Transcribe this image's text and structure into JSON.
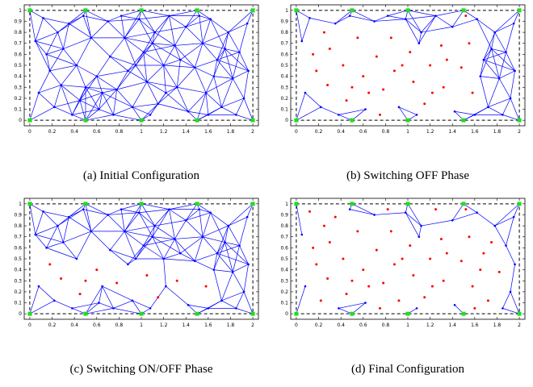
{
  "chart_data": [
    {
      "type": "scatter",
      "caption": "(a) Initial Configuration",
      "xlim": [
        -0.05,
        2.05
      ],
      "ylim": [
        -0.05,
        1.05
      ],
      "xticks": [
        0,
        0.2,
        0.4,
        0.6,
        0.8,
        1,
        1.2,
        1.4,
        1.6,
        1.8,
        2
      ],
      "yticks": [
        0,
        0.1,
        0.2,
        0.3,
        0.4,
        0.5,
        0.6,
        0.7,
        0.8,
        0.9,
        1
      ],
      "link_radius": 0.3,
      "series": [
        {
          "color": "#0000ff",
          "links": true,
          "marker": "dot",
          "x": [
            0.05,
            0.12,
            0.18,
            0.08,
            0.22,
            0.3,
            0.35,
            0.28,
            0.42,
            0.45,
            0.55,
            0.6,
            0.62,
            0.7,
            0.72,
            0.78,
            0.85,
            0.88,
            0.92,
            0.98,
            1.02,
            1.05,
            1.12,
            1.15,
            1.2,
            1.25,
            1.3,
            1.32,
            1.4,
            1.42,
            1.48,
            1.55,
            1.58,
            1.62,
            1.68,
            1.72,
            1.78,
            1.82,
            1.88,
            1.92,
            1.95,
            0.15,
            0.38,
            0.5,
            0.65,
            0.82,
            0.95,
            1.08,
            1.22,
            1.35,
            1.52,
            1.65,
            1.75,
            1.85,
            1.96,
            0.25,
            0.48,
            0.75,
            1.1,
            1.6
          ],
          "y": [
            0.72,
            0.93,
            0.45,
            0.25,
            0.12,
            0.65,
            0.88,
            0.32,
            0.5,
            0.18,
            0.75,
            0.4,
            0.1,
            0.9,
            0.58,
            0.28,
            0.75,
            0.45,
            0.12,
            0.92,
            0.62,
            0.35,
            0.8,
            0.15,
            0.5,
            0.95,
            0.68,
            0.3,
            0.85,
            0.08,
            0.48,
            0.7,
            0.25,
            0.92,
            0.55,
            0.12,
            0.8,
            0.38,
            0.62,
            0.2,
            0.88,
            0.6,
            0.05,
            0.3,
            0.25,
            0.95,
            0.5,
            0.05,
            0.25,
            0.55,
            0.95,
            0.4,
            0.65,
            0.05,
            0.45,
            0.8,
            0.95,
            0.05,
            0.7,
            0.05
          ]
        },
        {
          "color": "#22dd22",
          "links": true,
          "marker": "square",
          "x": [
            0,
            0.5,
            1,
            1.5,
            2,
            0,
            0.5,
            1,
            1.5,
            2
          ],
          "y": [
            0,
            0,
            0,
            0,
            0,
            1,
            1,
            1,
            1,
            1
          ]
        }
      ]
    },
    {
      "type": "scatter",
      "caption": "(b) Switching OFF Phase",
      "xlim": [
        -0.05,
        2.05
      ],
      "ylim": [
        -0.05,
        1.05
      ],
      "xticks": [
        0,
        0.2,
        0.4,
        0.6,
        0.8,
        1,
        1.2,
        1.4,
        1.6,
        1.8,
        2
      ],
      "yticks": [
        0,
        0.1,
        0.2,
        0.3,
        0.4,
        0.5,
        0.6,
        0.7,
        0.8,
        0.9,
        1
      ],
      "link_radius": 0.3,
      "series": [
        {
          "color": "#0000ff",
          "links": true,
          "marker": "dot",
          "x": [
            0.05,
            0.12,
            0.08,
            0.22,
            0.35,
            0.62,
            0.7,
            0.92,
            0.98,
            1.12,
            1.25,
            1.4,
            1.42,
            1.62,
            1.68,
            1.72,
            1.78,
            1.82,
            1.88,
            1.92,
            1.95,
            0.38,
            0.82,
            1.08,
            1.65,
            1.75,
            1.85,
            1.96,
            0.48,
            1.1,
            1.6
          ],
          "y": [
            0.72,
            0.93,
            0.25,
            0.12,
            0.88,
            0.1,
            0.9,
            0.12,
            0.92,
            0.8,
            0.95,
            0.85,
            0.08,
            0.92,
            0.55,
            0.12,
            0.8,
            0.38,
            0.62,
            0.2,
            0.88,
            0.05,
            0.95,
            0.05,
            0.4,
            0.65,
            0.05,
            0.45,
            0.95,
            0.7,
            0.05
          ]
        },
        {
          "color": "#ff0000",
          "links": false,
          "marker": "dot",
          "x": [
            0.18,
            0.3,
            0.28,
            0.42,
            0.45,
            0.55,
            0.6,
            0.72,
            0.78,
            0.85,
            0.88,
            1.02,
            1.05,
            1.15,
            1.2,
            1.3,
            1.32,
            1.48,
            1.55,
            1.58,
            0.15,
            0.5,
            0.65,
            0.95,
            1.22,
            1.35,
            1.52,
            0.25,
            0.75
          ],
          "y": [
            0.45,
            0.65,
            0.32,
            0.5,
            0.18,
            0.75,
            0.4,
            0.58,
            0.28,
            0.75,
            0.45,
            0.62,
            0.35,
            0.15,
            0.5,
            0.68,
            0.3,
            0.48,
            0.7,
            0.25,
            0.6,
            0.3,
            0.25,
            0.5,
            0.25,
            0.55,
            0.95,
            0.8,
            0.05
          ]
        },
        {
          "color": "#22dd22",
          "links": true,
          "marker": "square",
          "x": [
            0,
            0.5,
            1,
            1.5,
            2,
            0,
            0.5,
            1,
            1.5,
            2
          ],
          "y": [
            0,
            0,
            0,
            0,
            0,
            1,
            1,
            1,
            1,
            1
          ]
        }
      ]
    },
    {
      "type": "scatter",
      "caption": "(c) Switching ON/OFF Phase",
      "xlim": [
        -0.05,
        2.05
      ],
      "ylim": [
        -0.05,
        1.05
      ],
      "xticks": [
        0,
        0.2,
        0.4,
        0.6,
        0.8,
        1,
        1.2,
        1.4,
        1.6,
        1.8,
        2
      ],
      "yticks": [
        0,
        0.1,
        0.2,
        0.3,
        0.4,
        0.5,
        0.6,
        0.7,
        0.8,
        0.9,
        1
      ],
      "link_radius": 0.3,
      "series": [
        {
          "color": "#0000ff",
          "links": true,
          "marker": "dot",
          "x": [
            0.05,
            0.12,
            0.08,
            0.22,
            0.3,
            0.35,
            0.42,
            0.55,
            0.62,
            0.7,
            0.72,
            0.85,
            0.88,
            0.92,
            0.98,
            1.02,
            1.12,
            1.2,
            1.25,
            1.3,
            1.4,
            1.42,
            1.48,
            1.55,
            1.62,
            1.68,
            1.72,
            1.78,
            1.82,
            1.88,
            1.92,
            1.95,
            0.15,
            0.38,
            0.65,
            0.82,
            0.95,
            1.08,
            1.22,
            1.35,
            1.52,
            1.65,
            1.75,
            1.85,
            1.96,
            0.25,
            0.48,
            0.75,
            1.1,
            1.6
          ],
          "y": [
            0.72,
            0.93,
            0.25,
            0.12,
            0.65,
            0.88,
            0.5,
            0.75,
            0.1,
            0.9,
            0.58,
            0.75,
            0.45,
            0.12,
            0.92,
            0.62,
            0.8,
            0.5,
            0.95,
            0.68,
            0.85,
            0.08,
            0.48,
            0.7,
            0.92,
            0.55,
            0.12,
            0.8,
            0.38,
            0.62,
            0.2,
            0.88,
            0.6,
            0.05,
            0.25,
            0.95,
            0.5,
            0.05,
            0.25,
            0.55,
            0.95,
            0.4,
            0.65,
            0.05,
            0.45,
            0.8,
            0.95,
            0.05,
            0.7,
            0.05
          ]
        },
        {
          "color": "#ff0000",
          "links": false,
          "marker": "dot",
          "x": [
            0.18,
            0.28,
            0.45,
            0.6,
            0.78,
            1.05,
            1.15,
            1.32,
            1.58,
            0.5
          ],
          "y": [
            0.45,
            0.32,
            0.18,
            0.4,
            0.28,
            0.35,
            0.15,
            0.3,
            0.25,
            0.3
          ]
        },
        {
          "color": "#22dd22",
          "links": true,
          "marker": "square",
          "x": [
            0,
            0.5,
            1,
            1.5,
            2,
            0,
            0.5,
            1,
            1.5,
            2
          ],
          "y": [
            0,
            0,
            0,
            0,
            0,
            1,
            1,
            1,
            1,
            1
          ]
        }
      ]
    },
    {
      "type": "scatter",
      "caption": "(d) Final Configuration",
      "xlim": [
        -0.05,
        2.05
      ],
      "ylim": [
        -0.05,
        1.05
      ],
      "xticks": [
        0,
        0.2,
        0.4,
        0.6,
        0.8,
        1,
        1.2,
        1.4,
        1.6,
        1.8,
        2
      ],
      "yticks": [
        0,
        0.1,
        0.2,
        0.3,
        0.4,
        0.5,
        0.6,
        0.7,
        0.8,
        0.9,
        1
      ],
      "link_radius": 0.3,
      "series": [
        {
          "color": "#0000ff",
          "links": true,
          "marker": "dot",
          "x": [
            0.05,
            0.08,
            0.62,
            0.7,
            0.98,
            1.12,
            1.4,
            1.42,
            1.62,
            1.78,
            1.88,
            1.92,
            1.95,
            0.38,
            1.08,
            1.85,
            1.96,
            0.48,
            1.1
          ],
          "y": [
            0.72,
            0.25,
            0.1,
            0.9,
            0.92,
            0.8,
            0.85,
            0.08,
            0.92,
            0.8,
            0.62,
            0.2,
            0.88,
            0.05,
            0.05,
            0.05,
            0.45,
            0.95,
            0.7
          ]
        },
        {
          "color": "#ff0000",
          "links": false,
          "marker": "dot",
          "x": [
            0.12,
            0.18,
            0.22,
            0.3,
            0.35,
            0.28,
            0.42,
            0.45,
            0.55,
            0.6,
            0.72,
            0.78,
            0.85,
            0.88,
            0.92,
            1.02,
            1.05,
            1.15,
            1.2,
            1.25,
            1.3,
            1.32,
            1.48,
            1.55,
            1.58,
            1.68,
            1.72,
            1.82,
            0.15,
            0.5,
            0.65,
            0.82,
            0.95,
            1.22,
            1.35,
            1.52,
            1.65,
            1.75,
            0.25,
            0.75,
            1.6
          ],
          "y": [
            0.93,
            0.45,
            0.12,
            0.65,
            0.88,
            0.32,
            0.5,
            0.18,
            0.75,
            0.4,
            0.58,
            0.28,
            0.75,
            0.45,
            0.12,
            0.62,
            0.35,
            0.15,
            0.5,
            0.95,
            0.68,
            0.3,
            0.48,
            0.7,
            0.25,
            0.55,
            0.12,
            0.38,
            0.6,
            0.3,
            0.25,
            0.95,
            0.5,
            0.25,
            0.55,
            0.95,
            0.4,
            0.65,
            0.8,
            0.05,
            0.05
          ]
        },
        {
          "color": "#22dd22",
          "links": true,
          "marker": "square",
          "x": [
            0,
            0.5,
            1,
            1.5,
            2,
            0,
            0.5,
            1,
            1.5,
            2
          ],
          "y": [
            0,
            0,
            0,
            0,
            0,
            1,
            1,
            1,
            1,
            1
          ]
        }
      ]
    }
  ]
}
